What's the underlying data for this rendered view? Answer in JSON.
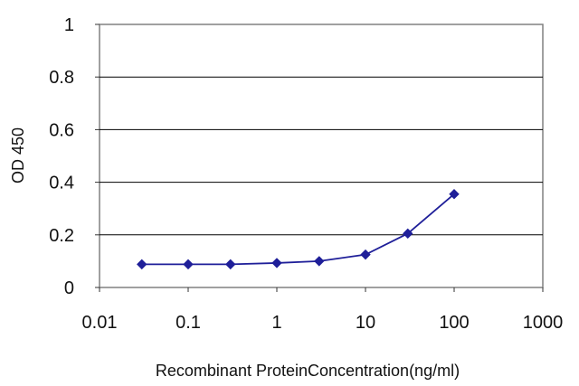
{
  "chart_data": {
    "type": "line",
    "title": "",
    "xlabel": "Recombinant ProteinConcentration(ng/ml)",
    "ylabel": "OD 450",
    "x_scale": "log",
    "xlim": [
      0.01,
      1000
    ],
    "ylim": [
      0,
      1
    ],
    "x_ticks": [
      "0.01",
      "0.1",
      "1",
      "10",
      "100",
      "1000"
    ],
    "y_ticks": [
      "0",
      "0.2",
      "0.4",
      "0.6",
      "0.8",
      "1"
    ],
    "grid": "horizontal",
    "legend": "none",
    "series": [
      {
        "x": [
          0.03,
          0.1,
          0.3,
          1,
          3,
          10,
          30,
          100
        ],
        "y": [
          0.088,
          0.088,
          0.088,
          0.093,
          0.1,
          0.125,
          0.205,
          0.355
        ],
        "color": "#1f1f99",
        "marker": "diamond"
      }
    ],
    "colors": {
      "plot_border": "#808080",
      "grid": "#000000",
      "line": "#1f1f99"
    }
  }
}
